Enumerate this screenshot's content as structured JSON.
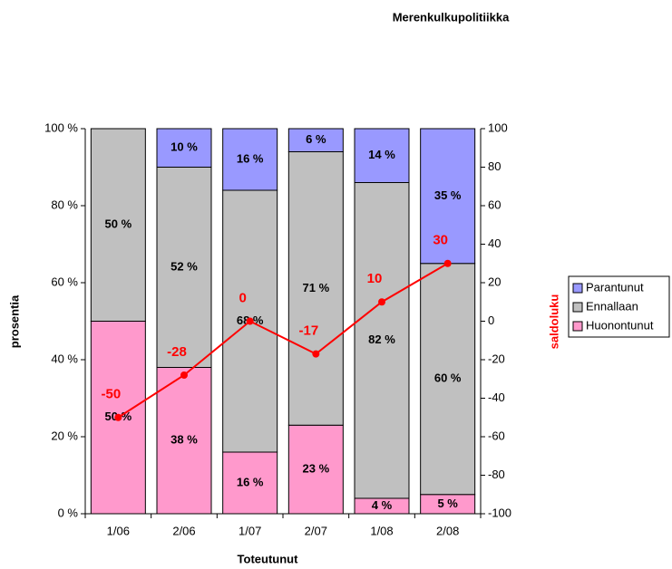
{
  "chart_data": {
    "type": "bar",
    "title": "Merenkulkupolitiikka",
    "stacked": true,
    "xlabel": "Toteutunut",
    "ylabel": "prosentia",
    "y2label": "saldoluku",
    "categories": [
      "1/06",
      "2/06",
      "1/07",
      "2/07",
      "1/08",
      "2/08"
    ],
    "series": [
      {
        "name": "Huonontunut",
        "color": "#ff99cc",
        "values": [
          50,
          38,
          16,
          23,
          4,
          5
        ],
        "value_labels": [
          "50 %",
          "38 %",
          "16 %",
          "23 %",
          "4 %",
          "5 %"
        ]
      },
      {
        "name": "Ennallaan",
        "color": "#c0c0c0",
        "values": [
          50,
          52,
          68,
          71,
          82,
          60
        ],
        "value_labels": [
          "50 %",
          "52 %",
          "68 %",
          "71 %",
          "82 %",
          "60 %"
        ]
      },
      {
        "name": "Parantunut",
        "color": "#9999ff",
        "values": [
          0,
          10,
          16,
          6,
          14,
          35
        ],
        "value_labels": [
          null,
          "10 %",
          "16 %",
          "6 %",
          "14 %",
          "35 %"
        ]
      },
      {
        "name": "saldoluku",
        "type": "line",
        "axis": "y2",
        "color": "#ff0000",
        "values": [
          -50,
          -28,
          0,
          -17,
          10,
          30
        ]
      }
    ],
    "ylim": [
      0,
      100
    ],
    "yticks": [
      {
        "value": 0,
        "label": "0 %"
      },
      {
        "value": 20,
        "label": "20 %"
      },
      {
        "value": 40,
        "label": "40 %"
      },
      {
        "value": 60,
        "label": "60 %"
      },
      {
        "value": 80,
        "label": "80 %"
      },
      {
        "value": 100,
        "label": "100 %"
      }
    ],
    "y2lim": [
      -100,
      100
    ],
    "y2ticks": [
      -100,
      -80,
      -60,
      -40,
      -20,
      0,
      20,
      40,
      60,
      80,
      100
    ],
    "grid": false,
    "legend": "right"
  }
}
